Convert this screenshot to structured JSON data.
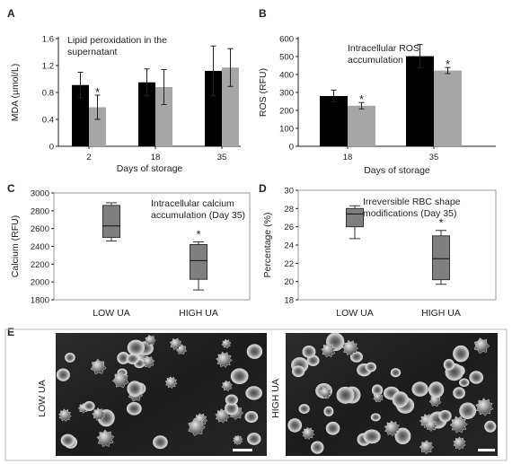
{
  "panels": {
    "a": "A",
    "b": "B",
    "c": "C",
    "d": "D",
    "e": "E"
  },
  "colors": {
    "low_ua": "#000000",
    "high_ua": "#a6a6a6",
    "box": "#7f7f7f"
  },
  "chart_data": [
    {
      "id": "A",
      "type": "bar",
      "annotation": [
        "Lipid peroxidation in the",
        "supernatant"
      ],
      "xlabel": "Days of storage",
      "ylabel": "MDA (µmol/L)",
      "categories": [
        "2",
        "18",
        "35"
      ],
      "ylim": [
        0,
        1.6
      ],
      "yticks": [
        "0",
        "0.4",
        "0.8",
        "1.2",
        "1.6"
      ],
      "series": [
        {
          "values": [
            0.91,
            0.95,
            1.12
          ],
          "errors": [
            0.19,
            0.2,
            0.37
          ]
        },
        {
          "values": [
            0.58,
            0.88,
            1.17
          ],
          "errors": [
            0.18,
            0.26,
            0.28
          ]
        }
      ],
      "significance": [
        {
          "category": "2",
          "series": 1,
          "label": "*"
        }
      ]
    },
    {
      "id": "B",
      "type": "bar",
      "annotation": [
        "Intracellular ROS",
        "accumulation"
      ],
      "xlabel": "Days of storage",
      "ylabel": "ROS (RFU)",
      "categories": [
        "18",
        "35"
      ],
      "ylim": [
        0,
        600
      ],
      "yticks": [
        "0",
        "100",
        "200",
        "300",
        "400",
        "500",
        "600"
      ],
      "series": [
        {
          "values": [
            280,
            502
          ],
          "errors": [
            33,
            65
          ]
        },
        {
          "values": [
            226,
            422
          ],
          "errors": [
            18,
            17
          ]
        }
      ],
      "significance": [
        {
          "category": "18",
          "series": 1,
          "label": "*"
        },
        {
          "category": "35",
          "series": 1,
          "label": "*"
        }
      ]
    },
    {
      "id": "C",
      "type": "box",
      "annotation": [
        "Intracellular calcium",
        "accumulation (Day 35)"
      ],
      "ylabel": "Calcium (RFU)",
      "categories": [
        "LOW UA",
        "HIGH UA"
      ],
      "ylim": [
        1800,
        3000
      ],
      "yticks": [
        "1800",
        "2000",
        "2200",
        "2400",
        "2600",
        "2800",
        "3000"
      ],
      "boxes": [
        {
          "min": 2460,
          "q1": 2500,
          "median": 2630,
          "q3": 2860,
          "max": 2890
        },
        {
          "min": 1910,
          "q1": 2030,
          "median": 2240,
          "q3": 2420,
          "max": 2450
        }
      ],
      "significance": [
        {
          "category": "HIGH UA",
          "label": "*"
        }
      ]
    },
    {
      "id": "D",
      "type": "box",
      "annotation": [
        "Irreversible RBC shape",
        "modifications (Day 35)"
      ],
      "ylabel": "Percentage (%)",
      "categories": [
        "LOW UA",
        "HIGH UA"
      ],
      "ylim": [
        18,
        30
      ],
      "yticks": [
        "18",
        "20",
        "22",
        "24",
        "26",
        "28",
        "30"
      ],
      "boxes": [
        {
          "min": 24.7,
          "q1": 26.0,
          "median": 27.4,
          "q3": 28.0,
          "max": 28.3
        },
        {
          "min": 19.7,
          "q1": 20.2,
          "median": 22.5,
          "q3": 25.0,
          "max": 25.6
        }
      ],
      "significance": [
        {
          "category": "HIGH UA",
          "label": "*"
        }
      ]
    }
  ],
  "micrographs": [
    {
      "label": "LOW UA"
    },
    {
      "label": "HIGH UA"
    }
  ]
}
